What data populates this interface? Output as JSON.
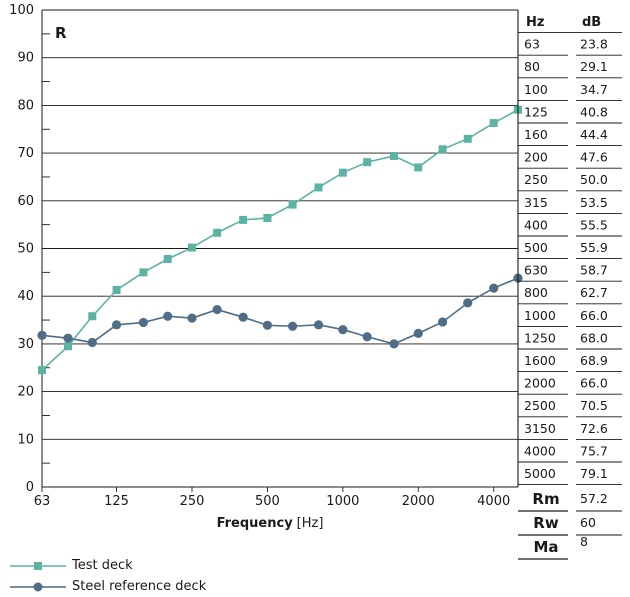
{
  "chart_data": {
    "type": "line",
    "title": "R",
    "xlabel": "Frequency",
    "xunit": "[Hz]",
    "x_ticks": [
      "63",
      "125",
      "250",
      "500",
      "1000",
      "2000",
      "4000"
    ],
    "y_ticks": [
      "0",
      "10",
      "20",
      "30",
      "40",
      "50",
      "60",
      "70",
      "80",
      "90",
      "100"
    ],
    "ylim": [
      0,
      100
    ],
    "x_scale": "log",
    "x": [
      63,
      80,
      100,
      125,
      160,
      200,
      250,
      315,
      400,
      500,
      630,
      800,
      1000,
      1250,
      1600,
      2000,
      2500,
      3150,
      4000,
      5000
    ],
    "series": [
      {
        "name": "Test deck",
        "color": "#5cb3a3",
        "marker": "square",
        "values": [
          24.5,
          29.5,
          35.8,
          41.3,
          45.0,
          47.8,
          50.2,
          53.3,
          56.0,
          56.4,
          59.2,
          62.8,
          65.9,
          68.1,
          69.4,
          67.0,
          70.8,
          73.0,
          76.3,
          79.1
        ]
      },
      {
        "name": "Steel reference deck",
        "color": "#4f6d86",
        "marker": "circle",
        "values": [
          31.8,
          31.2,
          30.3,
          34.0,
          34.5,
          35.8,
          35.4,
          37.2,
          35.6,
          33.9,
          33.7,
          34.0,
          33.0,
          31.5,
          30.0,
          32.2,
          34.6,
          38.6,
          41.7,
          43.8
        ]
      }
    ],
    "legend": "bottom-left",
    "table": {
      "headers": [
        "Hz",
        "dB"
      ],
      "rows": [
        [
          "63",
          "23.8"
        ],
        [
          "80",
          "29.1"
        ],
        [
          "100",
          "34.7"
        ],
        [
          "125",
          "40.8"
        ],
        [
          "160",
          "44.4"
        ],
        [
          "200",
          "47.6"
        ],
        [
          "250",
          "50.0"
        ],
        [
          "315",
          "53.5"
        ],
        [
          "400",
          "55.5"
        ],
        [
          "500",
          "55.9"
        ],
        [
          "630",
          "58.7"
        ],
        [
          "800",
          "62.7"
        ],
        [
          "1000",
          "66.0"
        ],
        [
          "1250",
          "68.0"
        ],
        [
          "1600",
          "68.9"
        ],
        [
          "2000",
          "66.0"
        ],
        [
          "2500",
          "70.5"
        ],
        [
          "3150",
          "72.6"
        ],
        [
          "4000",
          "75.7"
        ],
        [
          "5000",
          "79.1"
        ]
      ],
      "summary": [
        {
          "label": "Rm",
          "value": "57.2"
        },
        {
          "label": "Rw",
          "value": "60"
        },
        {
          "label": "Ma",
          "value": "8"
        }
      ]
    }
  }
}
